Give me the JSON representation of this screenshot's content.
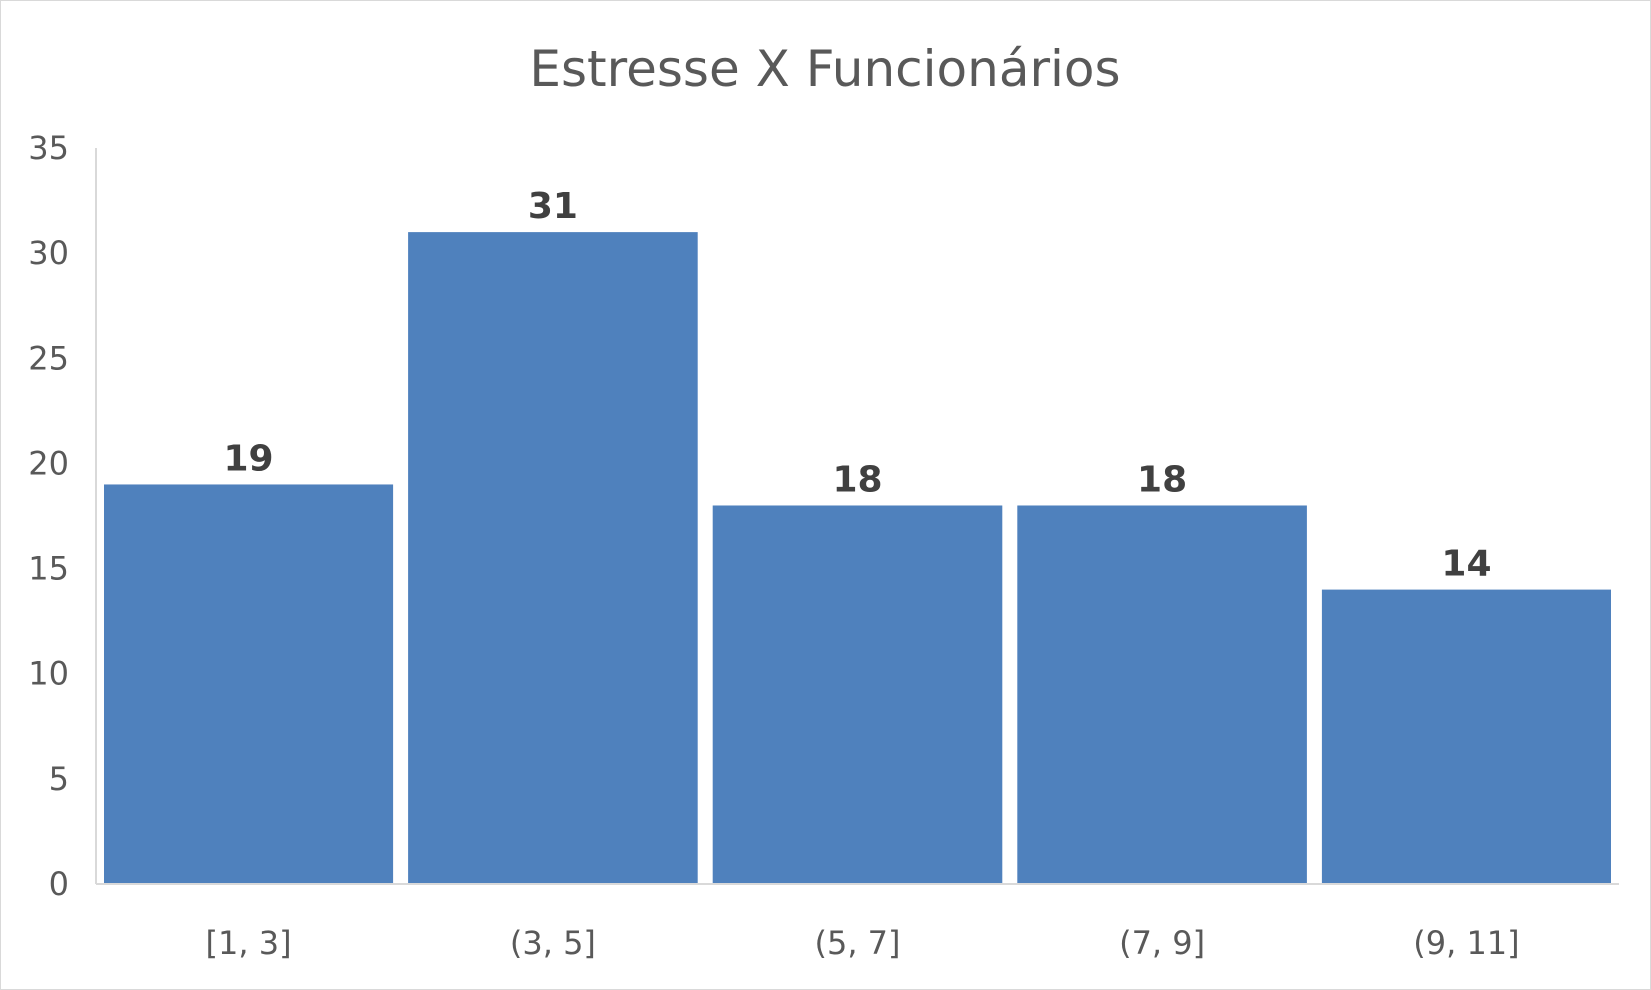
{
  "chart_data": {
    "type": "bar",
    "title": "Estresse X Funcionários",
    "categories": [
      "[1, 3]",
      "(3, 5]",
      "(5, 7]",
      "(7, 9]",
      "(9, 11]"
    ],
    "values": [
      19,
      31,
      18,
      18,
      14
    ],
    "ylim": [
      0,
      35
    ],
    "yticks": [
      0,
      5,
      10,
      15,
      20,
      25,
      30,
      35
    ],
    "xlabel": "",
    "ylabel": "",
    "grid": false,
    "legend": "none",
    "bar_color": "#4f81bd",
    "axis_color": "#d9d9d9",
    "label_color": "#595959",
    "value_label_color": "#404040"
  }
}
